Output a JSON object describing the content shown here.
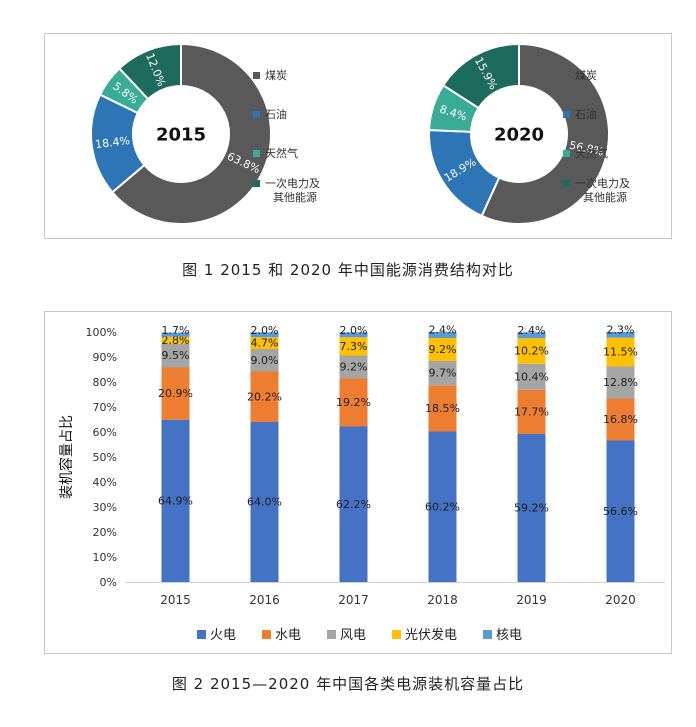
{
  "figure1": {
    "caption": "图 1 2015 和 2020 年中国能源消费结构对比",
    "legend": [
      {
        "label": "煤炭",
        "color": "#595959"
      },
      {
        "label": "石油",
        "color": "#2e75b6"
      },
      {
        "label": "天然气",
        "color": "#3aab96"
      },
      {
        "label": "一次电力及",
        "label2": "其他能源",
        "color": "#1d6b5c"
      }
    ]
  },
  "figure2": {
    "caption": "图 2 2015—2020 年中国各类电源装机容量占比",
    "ylabel": "装机容量占比"
  },
  "chart_data": [
    {
      "type": "pie",
      "subtype": "donut",
      "center_label": "2015",
      "categories": [
        "煤炭",
        "石油",
        "天然气",
        "一次电力及其他能源"
      ],
      "values": [
        63.8,
        18.4,
        5.8,
        12.0
      ],
      "labels": [
        "63.8%",
        "18.4%",
        "5.8%",
        "12.0%"
      ],
      "colors": [
        "#595959",
        "#2e75b6",
        "#3aab96",
        "#1d6b5c"
      ]
    },
    {
      "type": "pie",
      "subtype": "donut",
      "center_label": "2020",
      "categories": [
        "煤炭",
        "石油",
        "天然气",
        "一次电力及其他能源"
      ],
      "values": [
        56.8,
        18.9,
        8.4,
        15.9
      ],
      "labels": [
        "56.8%",
        "18.9%",
        "8.4%",
        "15.9%"
      ],
      "colors": [
        "#595959",
        "#2e75b6",
        "#3aab96",
        "#1d6b5c"
      ]
    },
    {
      "type": "bar",
      "stacked": true,
      "categories": [
        "2015",
        "2016",
        "2017",
        "2018",
        "2019",
        "2020"
      ],
      "ylabel": "装机容量占比",
      "ylim": [
        0,
        100
      ],
      "yticks": [
        "0%",
        "10%",
        "20%",
        "30%",
        "40%",
        "50%",
        "60%",
        "70%",
        "80%",
        "90%",
        "100%"
      ],
      "legend_position": "bottom",
      "series": [
        {
          "name": "火电",
          "color": "#4472c4",
          "values": [
            64.9,
            64.0,
            62.2,
            60.2,
            59.2,
            56.6
          ],
          "labels": [
            "64.9%",
            "64.0%",
            "62.2%",
            "60.2%",
            "59.2%",
            "56.6%"
          ]
        },
        {
          "name": "水电",
          "color": "#ed7d31",
          "values": [
            20.9,
            20.2,
            19.2,
            18.5,
            17.7,
            16.8
          ],
          "labels": [
            "20.9%",
            "20.2%",
            "19.2%",
            "18.5%",
            "17.7%",
            "16.8%"
          ]
        },
        {
          "name": "风电",
          "color": "#a5a5a5",
          "values": [
            9.5,
            9.0,
            9.2,
            9.7,
            10.4,
            12.8
          ],
          "labels": [
            "9.5%",
            "9.0%",
            "9.2%",
            "9.7%",
            "10.4%",
            "12.8%"
          ]
        },
        {
          "name": "光伏发电",
          "color": "#ffc000",
          "values": [
            2.8,
            4.7,
            7.3,
            9.2,
            10.2,
            11.5
          ],
          "labels": [
            "2.8%",
            "4.7%",
            "7.3%",
            "9.2%",
            "10.2%",
            "11.5%"
          ]
        },
        {
          "name": "核电",
          "color": "#5b9bd5",
          "values": [
            1.7,
            2.0,
            2.0,
            2.4,
            2.4,
            2.3
          ],
          "labels": [
            "1.7%",
            "2.0%",
            "2.0%",
            "2.4%",
            "2.4%",
            "2.3%"
          ]
        }
      ]
    }
  ]
}
